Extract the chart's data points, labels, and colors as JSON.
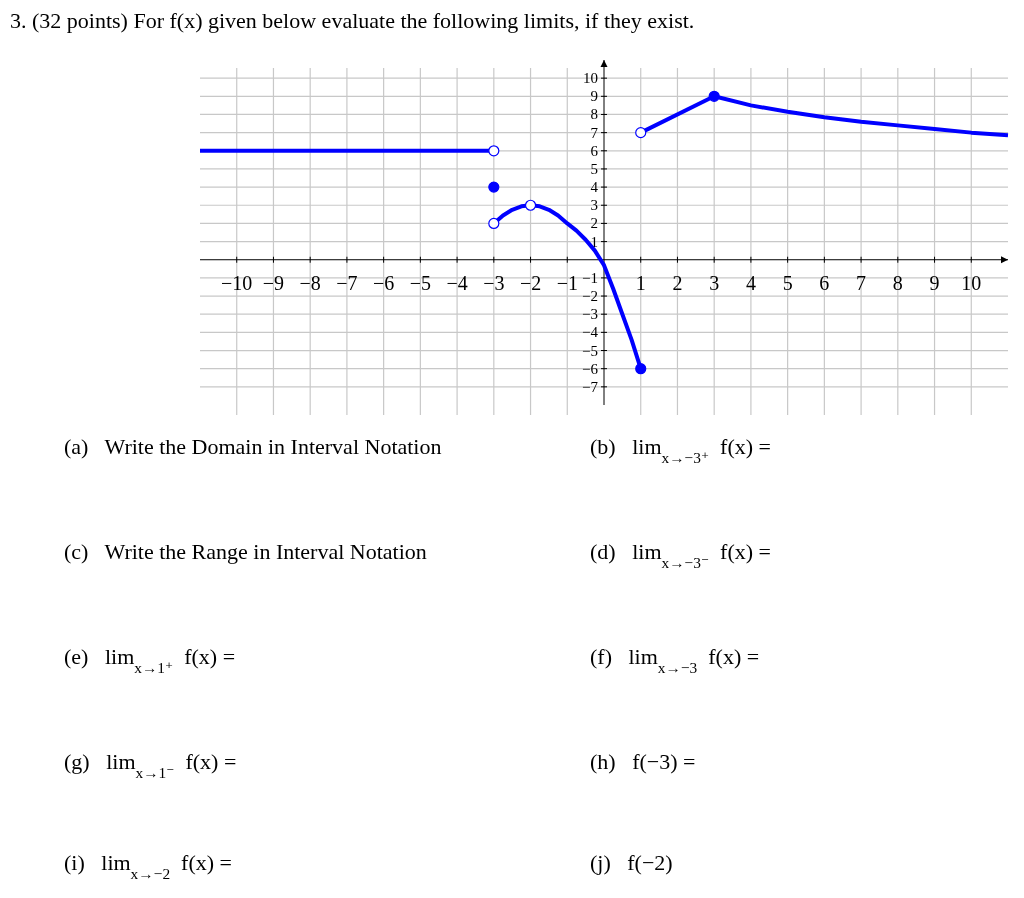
{
  "chart_data": {
    "type": "line",
    "title": "3. (32 points) For f(x) given below evaluate the following limits, if they exist.",
    "xlim": [
      -11,
      11
    ],
    "ylim": [
      -8,
      11
    ],
    "xticks": [
      {
        "value": -10,
        "label": "−10"
      },
      {
        "value": -9,
        "label": "−9"
      },
      {
        "value": -8,
        "label": "−8"
      },
      {
        "value": -7,
        "label": "−7"
      },
      {
        "value": -6,
        "label": "−6"
      },
      {
        "value": -5,
        "label": "−5"
      },
      {
        "value": -4,
        "label": "−4"
      },
      {
        "value": -3,
        "label": "−3"
      },
      {
        "value": -2,
        "label": "−2"
      },
      {
        "value": -1,
        "label": "−1"
      },
      1,
      2,
      3,
      4,
      5,
      6,
      7,
      8,
      9,
      10
    ],
    "yticks": [
      {
        "value": -7,
        "label": "−7"
      },
      {
        "value": -6,
        "label": "−6"
      },
      {
        "value": -5,
        "label": "−5"
      },
      {
        "value": -4,
        "label": "−4"
      },
      {
        "value": -3,
        "label": "−3"
      },
      {
        "value": -2,
        "label": "−2"
      },
      {
        "value": -1,
        "label": "−1"
      },
      1,
      2,
      3,
      4,
      5,
      6,
      7,
      8,
      9,
      10
    ],
    "grid": true,
    "line_style": "solid",
    "series": [
      {
        "color": "#0000ff",
        "x": [
          -11,
          -3
        ],
        "values": [
          6,
          6
        ]
      },
      {
        "color": "#0000ff",
        "x": [
          -3,
          -2.75,
          -2.5,
          -2.25,
          -2,
          -1.75,
          -1.5,
          -1.25,
          -1,
          -0.75,
          -0.5,
          -0.25,
          0,
          0.25,
          0.5,
          0.75,
          1
        ],
        "values": [
          2,
          2.44,
          2.75,
          2.94,
          3,
          2.94,
          2.75,
          2.44,
          2,
          1.6,
          1.1,
          0.5,
          -0.3,
          -1.6,
          -3,
          -4.4,
          -6
        ]
      },
      {
        "color": "#0000ff",
        "x": [
          1,
          3,
          4,
          5,
          6,
          7,
          8,
          9,
          10,
          11
        ],
        "values": [
          7,
          9,
          8.5,
          8.15,
          7.85,
          7.6,
          7.4,
          7.2,
          7,
          6.85
        ]
      },
      {
        "type": "scatter",
        "color": "#ffffff",
        "x": [
          -3,
          -3,
          -2,
          1
        ],
        "values": [
          6,
          2,
          3,
          7
        ]
      },
      {
        "type": "scatter",
        "color": "#0000ff",
        "x": [
          -3,
          1,
          3
        ],
        "values": [
          4,
          -6,
          9
        ]
      }
    ],
    "annotations": [
      "(a)   Write the Domain in Interval Notation",
      "(b)   lim$_{x→−3⁺}$ f(x) =",
      "(c)   Write the Range in Interval Notation",
      "(d)   lim$_{x→−3⁻}$ f(x) =",
      "(e)   lim$_{x→1⁺}$ f(x) =",
      "(f)   lim$_{x→−3}$ f(x) =",
      "(g)   lim$_{x→1⁻}$ f(x) =",
      "(h)   f(−3) =",
      "(i)   lim$_{x→−2}$ f(x) =",
      "(j)   f(−2)"
    ]
  }
}
